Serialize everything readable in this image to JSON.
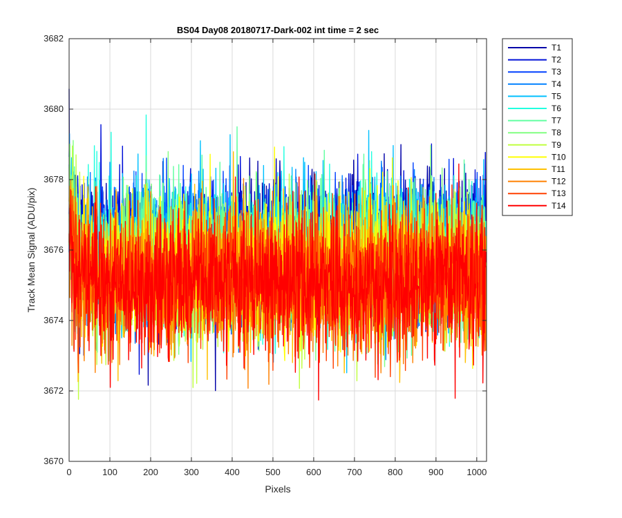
{
  "chart_data": {
    "type": "line",
    "title": "BS04 Day08 20180717-Dark-002 int time = 2 sec",
    "xlabel": "Pixels",
    "ylabel": "Track Mean Signal (ADU/pix)",
    "xlim": [
      0,
      1024
    ],
    "ylim": [
      3670,
      3682
    ],
    "xticks": [
      0,
      100,
      200,
      300,
      400,
      500,
      600,
      700,
      800,
      900,
      1000
    ],
    "yticks": [
      3670,
      3672,
      3674,
      3676,
      3678,
      3680,
      3682
    ],
    "grid": true,
    "legend_position": "outside-top-right",
    "n_points_per_series": 1024,
    "series": [
      {
        "name": "T1",
        "color": "#0000a8",
        "mean": 3676.2,
        "spread": 1.0
      },
      {
        "name": "T2",
        "color": "#0010d8",
        "mean": 3676.1,
        "spread": 1.0
      },
      {
        "name": "T3",
        "color": "#0040ff",
        "mean": 3676.0,
        "spread": 1.0
      },
      {
        "name": "T4",
        "color": "#0080ff",
        "mean": 3675.9,
        "spread": 1.0
      },
      {
        "name": "T5",
        "color": "#00c0ff",
        "mean": 3675.9,
        "spread": 1.0
      },
      {
        "name": "T6",
        "color": "#20ffe0",
        "mean": 3675.8,
        "spread": 1.0
      },
      {
        "name": "T7",
        "color": "#60ffa0",
        "mean": 3675.7,
        "spread": 1.0
      },
      {
        "name": "T8",
        "color": "#80ff80",
        "mean": 3675.6,
        "spread": 1.0
      },
      {
        "name": "T9",
        "color": "#c0ff40",
        "mean": 3675.5,
        "spread": 1.0
      },
      {
        "name": "T10",
        "color": "#ffff00",
        "mean": 3675.4,
        "spread": 1.0
      },
      {
        "name": "T11",
        "color": "#ffc000",
        "mean": 3675.3,
        "spread": 1.0
      },
      {
        "name": "T12",
        "color": "#ff8000",
        "mean": 3675.2,
        "spread": 1.0
      },
      {
        "name": "T13",
        "color": "#ff4000",
        "mean": 3675.1,
        "spread": 1.0
      },
      {
        "name": "T14",
        "color": "#ff0000",
        "mean": 3675.0,
        "spread": 1.0
      }
    ]
  }
}
